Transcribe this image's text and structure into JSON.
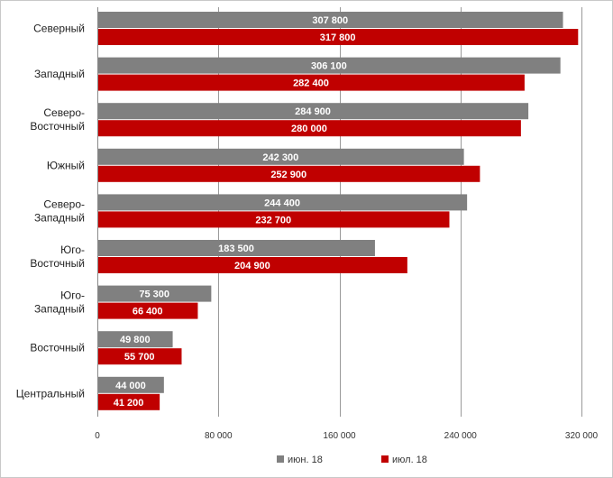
{
  "chart_data": {
    "type": "bar",
    "orientation": "horizontal",
    "categories": [
      [
        "Северный"
      ],
      [
        "Западный"
      ],
      [
        "Северо-",
        "Восточный"
      ],
      [
        "Южный"
      ],
      [
        "Северо-",
        "Западный"
      ],
      [
        "Юго-",
        "Восточный"
      ],
      [
        "Юго-",
        "Западный"
      ],
      [
        "Восточный"
      ],
      [
        "Центральный"
      ]
    ],
    "series": [
      {
        "name": "июн. 18",
        "color": "#808080",
        "values": [
          307800,
          306100,
          284900,
          242300,
          244400,
          183500,
          75300,
          49800,
          44000
        ],
        "labels": [
          "307 800",
          "306 100",
          "284 900",
          "242 300",
          "244 400",
          "183 500",
          "75 300",
          "49 800",
          "44 000"
        ]
      },
      {
        "name": "июл. 18",
        "color": "#c00000",
        "values": [
          317800,
          282400,
          280000,
          252900,
          232700,
          204900,
          66400,
          55700,
          41200
        ],
        "labels": [
          "317 800",
          "282 400",
          "280 000",
          "252 900",
          "232 700",
          "204 900",
          "66 400",
          "55 700",
          "41 200"
        ]
      }
    ],
    "xlim": [
      0,
      320000
    ],
    "xticks": [
      {
        "value": 0,
        "label": "0"
      },
      {
        "value": 80000,
        "label": "80 000"
      },
      {
        "value": 160000,
        "label": "160 000"
      },
      {
        "value": 240000,
        "label": "240 000"
      },
      {
        "value": 320000,
        "label": "320 000"
      }
    ],
    "grid": true,
    "legend_position": "bottom",
    "title": "",
    "xlabel": "",
    "ylabel": ""
  }
}
